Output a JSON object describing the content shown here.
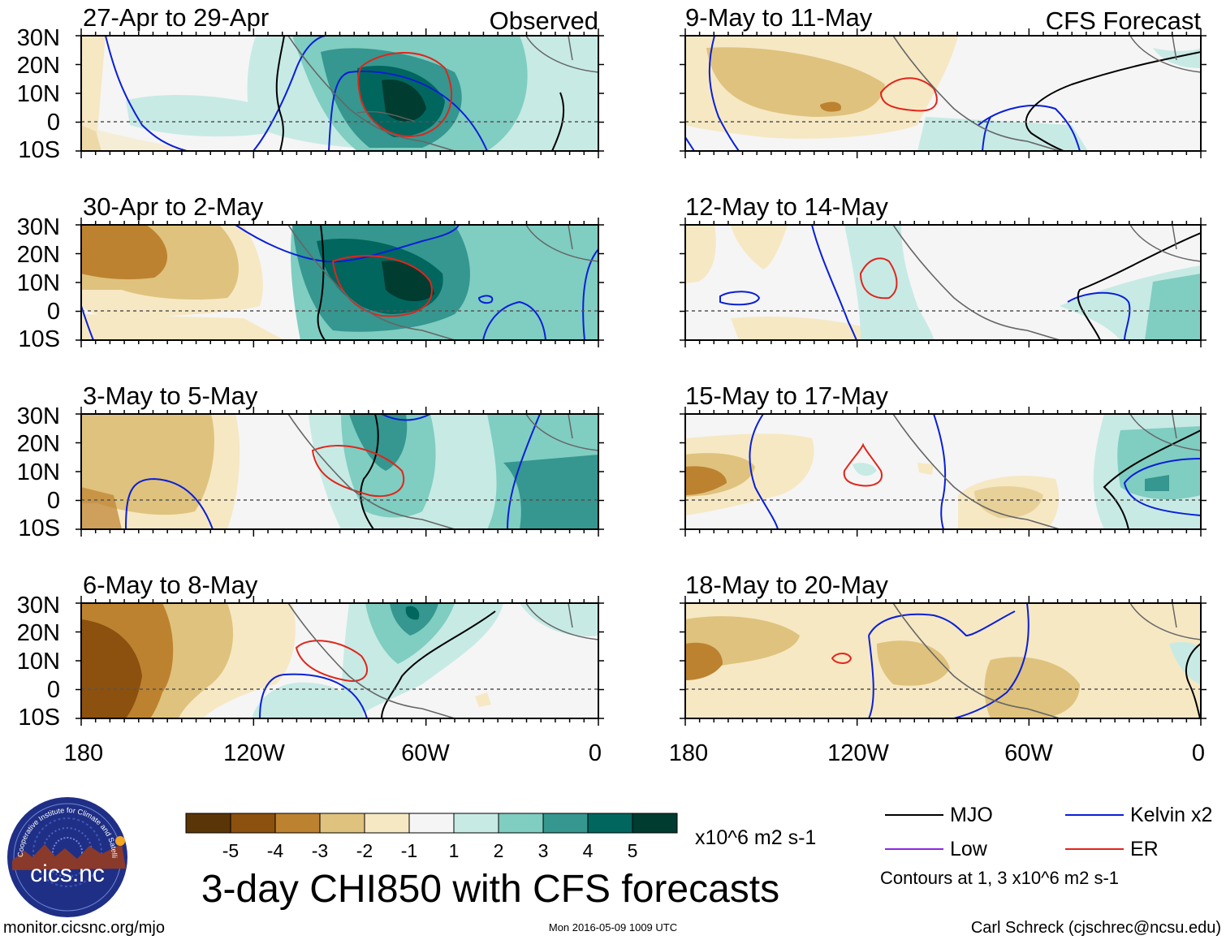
{
  "figure": {
    "title": "3-day CHI850 with CFS forecasts",
    "observed_label": "Observed",
    "forecast_label": "CFS Forecast",
    "units": "x10^6 m2 s-1",
    "contour_note": "Contours at 1, 3 x10^6 m2 s-1",
    "website": "monitor.cicsnc.org/mjo",
    "timestamp": "Mon 2016-05-09 1009 UTC",
    "author": "Carl Schreck (cjschrec@ncsu.edu)",
    "logo_text": "cics.nc",
    "logo_ring_text": "Cooperative Institute for Climate and Satellites"
  },
  "axes": {
    "y_labels": [
      "30N",
      "20N",
      "10N",
      "0",
      "10S"
    ],
    "x_labels": [
      "180",
      "120W",
      "60W",
      "0"
    ]
  },
  "panels": [
    {
      "title": "27-Apr to 29-Apr",
      "group": "observed"
    },
    {
      "title": "30-Apr to 2-May",
      "group": "observed"
    },
    {
      "title": "3-May to 5-May",
      "group": "observed"
    },
    {
      "title": "6-May to 8-May",
      "group": "observed"
    },
    {
      "title": "9-May to 11-May",
      "group": "forecast"
    },
    {
      "title": "12-May to 14-May",
      "group": "forecast"
    },
    {
      "title": "15-May to 17-May",
      "group": "forecast"
    },
    {
      "title": "18-May to 20-May",
      "group": "forecast"
    }
  ],
  "colorbar": {
    "colors": [
      "#5a3508",
      "#8c500f",
      "#bd8230",
      "#dfc27d",
      "#f6e8c3",
      "#f5f5f5",
      "#c7eae5",
      "#80cdc1",
      "#35978f",
      "#01665e",
      "#003c30"
    ],
    "tick_labels": [
      "-5",
      "-4",
      "-3",
      "-2",
      "-1",
      "1",
      "2",
      "3",
      "4",
      "5"
    ]
  },
  "legend": [
    {
      "label": "MJO",
      "color": "#000000"
    },
    {
      "label": "Kelvin x2",
      "color": "#0a1fd8"
    },
    {
      "label": "Low",
      "color": "#8a2be2"
    },
    {
      "label": "ER",
      "color": "#e0251b"
    }
  ]
}
